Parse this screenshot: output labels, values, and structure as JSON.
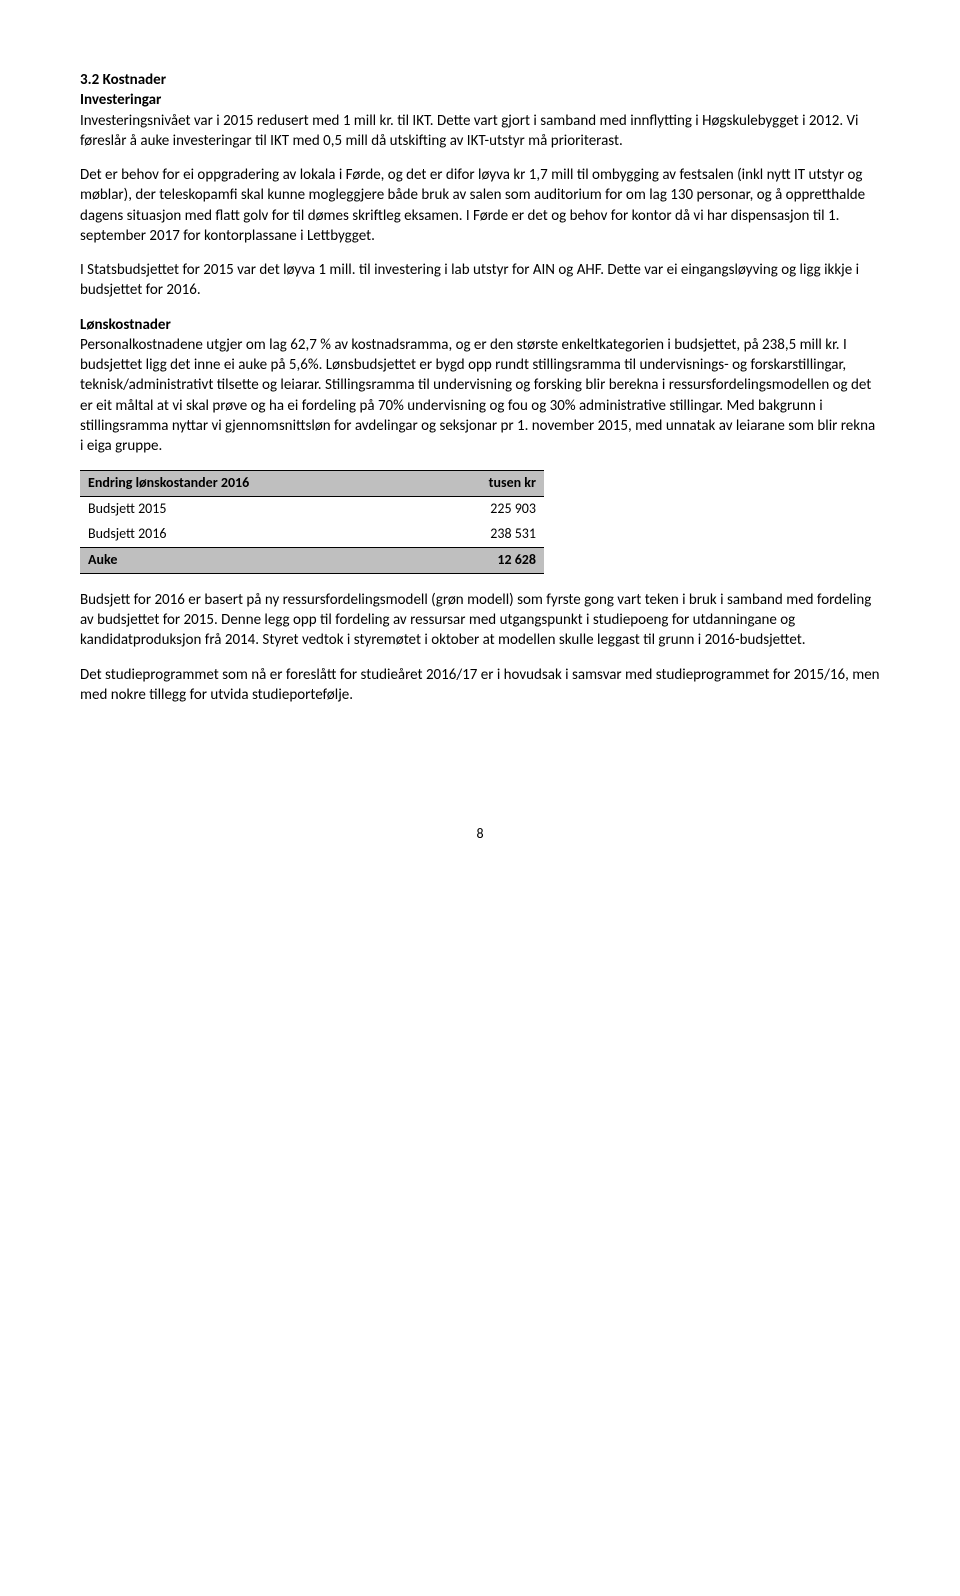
{
  "section": {
    "heading": "3.2 Kostnader",
    "sub1": "Investeringar",
    "p1": "Investeringsnivået var i 2015 redusert med 1 mill kr. til IKT. Dette vart gjort i samband med innflytting i Høgskulebygget i 2012. Vi føreslår å auke investeringar til IKT med 0,5 mill då utskifting av IKT-utstyr må prioriterast.",
    "p2": "Det er behov for ei oppgradering av lokala i Førde, og det er difor løyva kr 1,7 mill til ombygging av festsalen (inkl nytt IT utstyr og møblar), der teleskopamfi skal kunne mogleggjere både bruk av salen som auditorium for om lag 130 personar, og å oppretthalde dagens situasjon med flatt golv for til dømes skriftleg eksamen. I Førde er det og behov for kontor då vi har dispensasjon til 1. september 2017 for kontorplassane i Lettbygget.",
    "p3": "I Statsbudsjettet for 2015 var det løyva 1 mill. til investering i lab utstyr for AIN og AHF. Dette var ei eingangsløyving og ligg ikkje i budsjettet for 2016.",
    "sub2": "Lønskostnader",
    "p4": "Personalkostnadene utgjer om lag 62,7 % av kostnadsramma, og er den største enkeltkategorien i budsjettet, på 238,5 mill kr. I budsjettet ligg det inne ei auke på 5,6%. Lønsbudsjettet er bygd opp rundt stillingsramma til undervisnings- og forskarstillingar, teknisk/administrativt tilsette og leiarar. Stillingsramma til undervisning og forsking blir berekna i ressursfordelingsmodellen og det er eit måltal at vi skal prøve og ha ei fordeling på 70% undervisning og fou og 30% administrative stillingar. Med bakgrunn i stillingsramma nyttar vi gjennomsnittsløn for avdelingar og seksjonar pr 1. november 2015, med unnatak av leiarane som blir rekna i eiga gruppe."
  },
  "table": {
    "header_label": "Endring lønskostander 2016",
    "header_unit": "tusen kr",
    "rows": [
      {
        "label": "Budsjett 2015",
        "value": "225 903"
      },
      {
        "label": "Budsjett 2016",
        "value": "238 531"
      }
    ],
    "sum_label": "Auke",
    "sum_value": "12 628",
    "colors": {
      "header_bg": "#bfbfbf",
      "border": "#000000",
      "body_bg": "#ffffff"
    }
  },
  "after": {
    "p5": "Budsjett for 2016 er basert på ny ressursfordelingsmodell (grøn modell) som fyrste gong vart teken i bruk i samband med fordeling av budsjettet for 2015. Denne legg opp til fordeling av ressursar med utgangspunkt i studiepoeng for utdanningane og kandidatproduksjon frå 2014. Styret vedtok i styremøtet i oktober at modellen skulle leggast til grunn i 2016-budsjettet.",
    "p6": "Det studieprogrammet som nå er foreslått for studieåret 2016/17 er i hovudsak i samsvar med studieprogrammet for 2015/16, men med nokre tillegg for utvida studieportefølje."
  },
  "page_number": "8"
}
